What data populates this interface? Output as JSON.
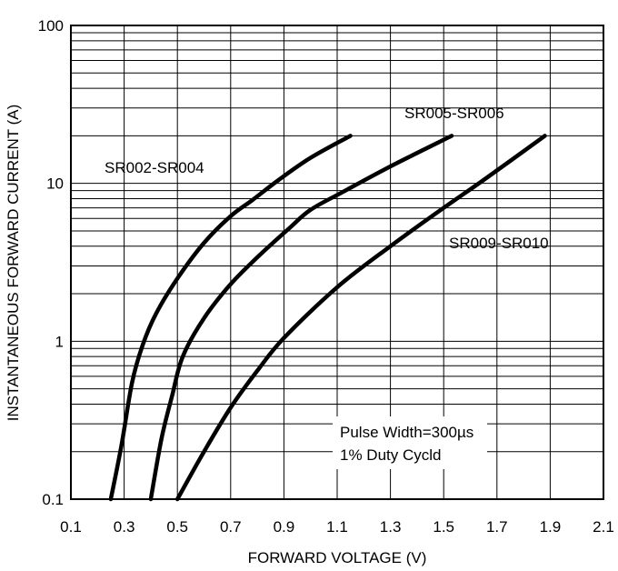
{
  "chart_data": {
    "type": "line",
    "title": "",
    "xlabel": "FORWARD VOLTAGE (V)",
    "ylabel": "INSTANTANEOUS FORWARD CURRENT (A)",
    "xlim": [
      0.1,
      2.1
    ],
    "ylim": [
      0.1,
      100
    ],
    "y_scale": "log",
    "grid": true,
    "x_ticks": [
      "0.1",
      "0.3",
      "0.5",
      "0.7",
      "0.9",
      "1.1",
      "1.3",
      "1.5",
      "1.7",
      "1.9",
      "2.1"
    ],
    "y_ticks": [
      "0.1",
      "1",
      "10",
      "100"
    ],
    "series": [
      {
        "name": "SR002-SR004",
        "points": [
          [
            0.25,
            0.1
          ],
          [
            0.29,
            0.22
          ],
          [
            0.33,
            0.55
          ],
          [
            0.37,
            0.95
          ],
          [
            0.42,
            1.5
          ],
          [
            0.5,
            2.5
          ],
          [
            0.6,
            4.2
          ],
          [
            0.7,
            6.2
          ],
          [
            0.78,
            7.8
          ],
          [
            0.88,
            10.5
          ],
          [
            1.0,
            14.5
          ],
          [
            1.15,
            20
          ]
        ]
      },
      {
        "name": "SR005-SR006",
        "points": [
          [
            0.4,
            0.1
          ],
          [
            0.44,
            0.24
          ],
          [
            0.48,
            0.45
          ],
          [
            0.52,
            0.8
          ],
          [
            0.6,
            1.4
          ],
          [
            0.7,
            2.3
          ],
          [
            0.8,
            3.4
          ],
          [
            0.92,
            5.2
          ],
          [
            1.0,
            6.8
          ],
          [
            1.12,
            8.8
          ],
          [
            1.3,
            12.8
          ],
          [
            1.53,
            20
          ]
        ]
      },
      {
        "name": "SR009-SR010",
        "points": [
          [
            0.5,
            0.1
          ],
          [
            0.6,
            0.2
          ],
          [
            0.7,
            0.38
          ],
          [
            0.8,
            0.65
          ],
          [
            0.9,
            1.05
          ],
          [
            1.1,
            2.2
          ],
          [
            1.3,
            4
          ],
          [
            1.5,
            7
          ],
          [
            1.65,
            10.5
          ],
          [
            1.88,
            20
          ]
        ]
      }
    ],
    "annotations": [
      "Pulse Width=300µs",
      "1% Duty Cycld"
    ]
  }
}
